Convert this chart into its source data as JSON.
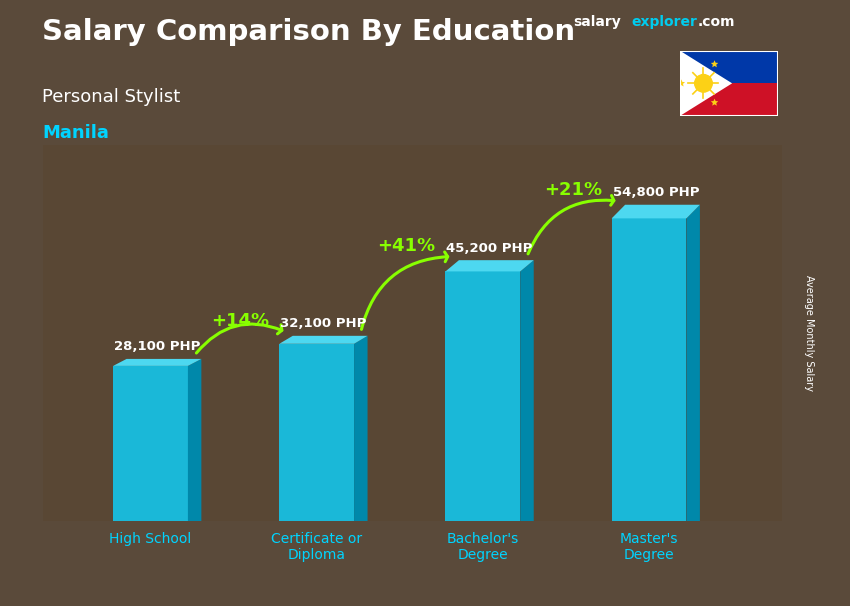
{
  "title": "Salary Comparison By Education",
  "subtitle": "Personal Stylist",
  "city": "Manila",
  "ylabel": "Average Monthly Salary",
  "categories": [
    "High School",
    "Certificate or\nDiploma",
    "Bachelor's\nDegree",
    "Master's\nDegree"
  ],
  "values": [
    28100,
    32100,
    45200,
    54800
  ],
  "value_labels": [
    "28,100 PHP",
    "32,100 PHP",
    "45,200 PHP",
    "54,800 PHP"
  ],
  "pct_labels": [
    "+14%",
    "+41%",
    "+21%"
  ],
  "bar_face_color": "#1ab8d8",
  "bar_top_color": "#4dd8f0",
  "bar_side_color": "#0088aa",
  "bg_color": "#5a4a3a",
  "title_color": "#ffffff",
  "subtitle_color": "#ffffff",
  "city_color": "#00d4ff",
  "value_label_color": "#ffffff",
  "pct_color": "#88ff00",
  "arrow_color": "#88ff00",
  "xtick_color": "#00d4ff",
  "ylim": [
    0,
    68000
  ],
  "bar_width": 0.45
}
